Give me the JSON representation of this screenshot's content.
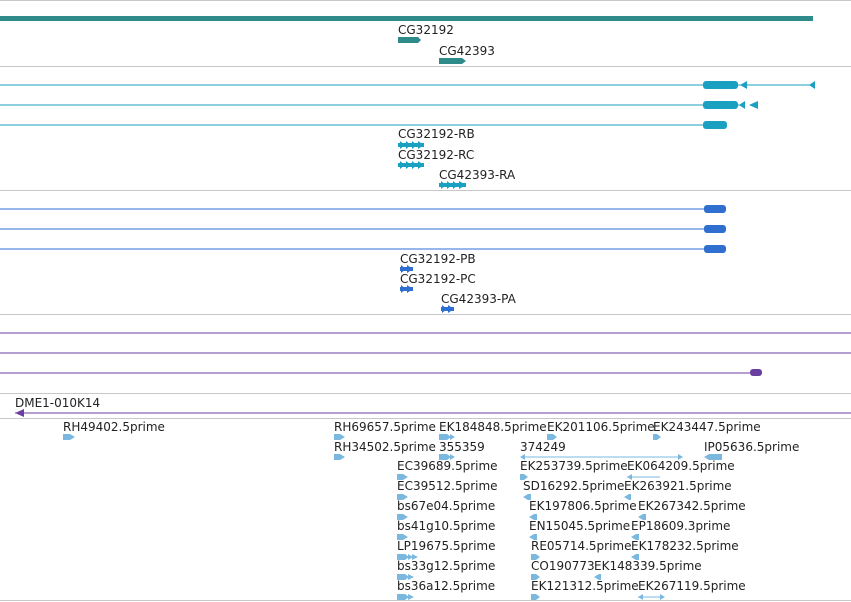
{
  "colors": {
    "gene": "#2f8a8a",
    "mrna": "#1aa0c0",
    "protein": "#2f6fd0",
    "purple": "#6a3fa0",
    "est": "#7ab8e0",
    "divider": "#c8c8c8"
  },
  "gene_track": {
    "labels": [
      "CG32192",
      "CG42393"
    ]
  },
  "mrna_track": {
    "labels": [
      "CG32192-RB",
      "CG32192-RC",
      "CG42393-RA"
    ]
  },
  "protein_track": {
    "labels": [
      "CG32192-PB",
      "CG32192-PC",
      "CG42393-PA"
    ]
  },
  "clone_track": {
    "label": "DME1-010K14"
  },
  "est_track": {
    "labels": [
      "RH49402.5prime",
      "RH69657.5prime",
      "EK184848.5prime",
      "EK201106.5prime",
      "EK243447.5prime",
      "RH34502.5prime",
      "355359",
      "374249",
      "IP05636.5prime",
      "EC39689.5prime",
      "EK253739.5prime",
      "EK064209.5prime",
      "EC39512.5prime",
      "SD16292.5prime",
      "EK263921.5prime",
      "bs67e04.5prime",
      "EK197806.5prime",
      "EK267342.5prime",
      "bs41g10.5prime",
      "EN15045.5prime",
      "EP18609.3prime",
      "LP19675.5prime",
      "RE05714.5prime",
      "EK178232.5prime",
      "bs33g12.5prime",
      "CO190773",
      "EK148339.5prime",
      "bs36a12.5prime",
      "EK121312.5prime",
      "EK267119.5prime"
    ]
  }
}
